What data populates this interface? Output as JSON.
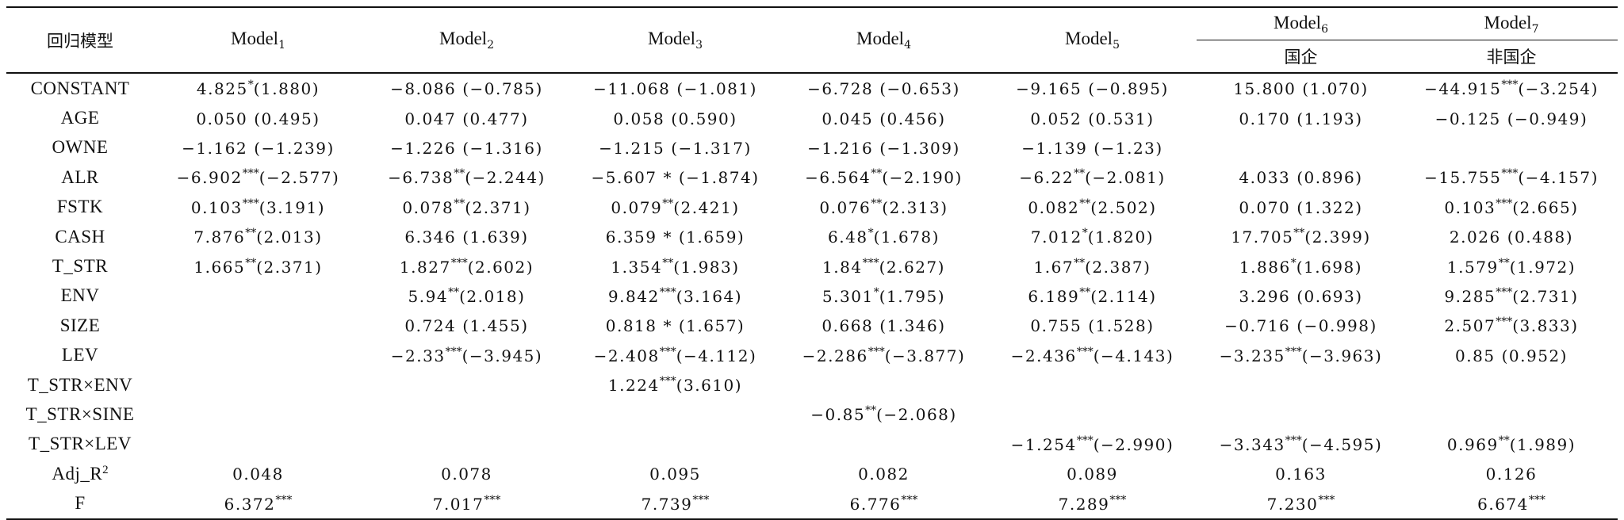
{
  "header": {
    "first_col": "回归模型",
    "models": [
      {
        "name": "Model",
        "sub": "1"
      },
      {
        "name": "Model",
        "sub": "2"
      },
      {
        "name": "Model",
        "sub": "3"
      },
      {
        "name": "Model",
        "sub": "4"
      },
      {
        "name": "Model",
        "sub": "5"
      },
      {
        "name": "Model",
        "sub": "6"
      },
      {
        "name": "Model",
        "sub": "7"
      }
    ],
    "model6_group": "国企",
    "model7_group": "非国企"
  },
  "rows": [
    {
      "label": "CONSTANT",
      "cells": [
        {
          "v": "4.825",
          "s": "*",
          "t": "(1.880)"
        },
        {
          "v": "−8.086",
          "s": "",
          "t": "(−0.785)"
        },
        {
          "v": "−11.068",
          "s": "",
          "t": "(−1.081)"
        },
        {
          "v": "−6.728",
          "s": "",
          "t": "(−0.653)"
        },
        {
          "v": "−9.165",
          "s": "",
          "t": "(−0.895)"
        },
        {
          "v": "15.800",
          "s": "",
          "t": "(1.070)"
        },
        {
          "v": "−44.915",
          "s": "***",
          "t": "(−3.254)"
        }
      ]
    },
    {
      "label": "AGE",
      "cells": [
        {
          "v": "0.050",
          "s": "",
          "t": "(0.495)"
        },
        {
          "v": "0.047",
          "s": "",
          "t": "(0.477)"
        },
        {
          "v": "0.058",
          "s": "",
          "t": "(0.590)"
        },
        {
          "v": "0.045",
          "s": "",
          "t": "(0.456)"
        },
        {
          "v": "0.052",
          "s": "",
          "t": "(0.531)"
        },
        {
          "v": "0.170",
          "s": "",
          "t": "(1.193)"
        },
        {
          "v": "−0.125",
          "s": "",
          "t": "(−0.949)"
        }
      ]
    },
    {
      "label": "OWNE",
      "cells": [
        {
          "v": "−1.162",
          "s": "",
          "t": "(−1.239)"
        },
        {
          "v": "−1.226",
          "s": "",
          "t": "(−1.316)"
        },
        {
          "v": "−1.215",
          "s": "",
          "t": "(−1.317)"
        },
        {
          "v": "−1.216",
          "s": "",
          "t": "(−1.309)"
        },
        {
          "v": "−1.139",
          "s": "",
          "t": "(−1.23)"
        },
        {
          "v": "",
          "s": "",
          "t": ""
        },
        {
          "v": "",
          "s": "",
          "t": ""
        }
      ]
    },
    {
      "label": "ALR",
      "cells": [
        {
          "v": "−6.902",
          "s": "***",
          "t": "(−2.577)"
        },
        {
          "v": "−6.738",
          "s": "**",
          "t": "(−2.244)"
        },
        {
          "v": "−5.607",
          "s": "",
          "t": "* (−1.874)"
        },
        {
          "v": "−6.564",
          "s": "**",
          "t": "(−2.190)"
        },
        {
          "v": "−6.22",
          "s": "**",
          "t": "(−2.081)"
        },
        {
          "v": "4.033",
          "s": "",
          "t": "(0.896)"
        },
        {
          "v": "−15.755",
          "s": "***",
          "t": "(−4.157)"
        }
      ]
    },
    {
      "label": "FSTK",
      "cells": [
        {
          "v": "0.103",
          "s": "***",
          "t": "(3.191)"
        },
        {
          "v": "0.078",
          "s": "**",
          "t": "(2.371)"
        },
        {
          "v": "0.079",
          "s": "**",
          "t": "(2.421)"
        },
        {
          "v": "0.076",
          "s": "**",
          "t": "(2.313)"
        },
        {
          "v": "0.082",
          "s": "**",
          "t": "(2.502)"
        },
        {
          "v": "0.070",
          "s": "",
          "t": "(1.322)"
        },
        {
          "v": "0.103",
          "s": "***",
          "t": "(2.665)"
        }
      ]
    },
    {
      "label": "CASH",
      "cells": [
        {
          "v": "7.876",
          "s": "**",
          "t": "(2.013)"
        },
        {
          "v": "6.346",
          "s": "",
          "t": "(1.639)"
        },
        {
          "v": "6.359",
          "s": "",
          "t": "* (1.659)"
        },
        {
          "v": "6.48",
          "s": "*",
          "t": "(1.678)"
        },
        {
          "v": "7.012",
          "s": "*",
          "t": "(1.820)"
        },
        {
          "v": "17.705",
          "s": "**",
          "t": "(2.399)"
        },
        {
          "v": "2.026",
          "s": "",
          "t": "(0.488)"
        }
      ]
    },
    {
      "label": "T_STR",
      "cells": [
        {
          "v": "1.665",
          "s": "**",
          "t": "(2.371)"
        },
        {
          "v": "1.827",
          "s": "***",
          "t": "(2.602)"
        },
        {
          "v": "1.354",
          "s": "**",
          "t": "(1.983)"
        },
        {
          "v": "1.84",
          "s": "***",
          "t": "(2.627)"
        },
        {
          "v": "1.67",
          "s": "**",
          "t": "(2.387)"
        },
        {
          "v": "1.886",
          "s": "*",
          "t": "(1.698)"
        },
        {
          "v": "1.579",
          "s": "**",
          "t": "(1.972)"
        }
      ]
    },
    {
      "label": "ENV",
      "cells": [
        {
          "v": "",
          "s": "",
          "t": ""
        },
        {
          "v": "5.94",
          "s": "**",
          "t": "(2.018)"
        },
        {
          "v": "9.842",
          "s": "***",
          "t": "(3.164)"
        },
        {
          "v": "5.301",
          "s": "*",
          "t": "(1.795)"
        },
        {
          "v": "6.189",
          "s": "**",
          "t": "(2.114)"
        },
        {
          "v": "3.296",
          "s": "",
          "t": "(0.693)"
        },
        {
          "v": "9.285",
          "s": "***",
          "t": "(2.731)"
        }
      ]
    },
    {
      "label": "SIZE",
      "cells": [
        {
          "v": "",
          "s": "",
          "t": ""
        },
        {
          "v": "0.724",
          "s": "",
          "t": "(1.455)"
        },
        {
          "v": "0.818",
          "s": "",
          "t": "* (1.657)"
        },
        {
          "v": "0.668",
          "s": "",
          "t": "(1.346)"
        },
        {
          "v": "0.755",
          "s": "",
          "t": "(1.528)"
        },
        {
          "v": "−0.716",
          "s": "",
          "t": "(−0.998)"
        },
        {
          "v": "2.507",
          "s": "***",
          "t": "(3.833)"
        }
      ]
    },
    {
      "label": "LEV",
      "cells": [
        {
          "v": "",
          "s": "",
          "t": ""
        },
        {
          "v": "−2.33",
          "s": "***",
          "t": "(−3.945)"
        },
        {
          "v": "−2.408",
          "s": "***",
          "t": "(−4.112)"
        },
        {
          "v": "−2.286",
          "s": "***",
          "t": "(−3.877)"
        },
        {
          "v": "−2.436",
          "s": "***",
          "t": "(−4.143)"
        },
        {
          "v": "−3.235",
          "s": "***",
          "t": "(−3.963)"
        },
        {
          "v": "0.85",
          "s": "",
          "t": "(0.952)"
        }
      ]
    },
    {
      "label": "T_STR×ENV",
      "cells": [
        {
          "v": "",
          "s": "",
          "t": ""
        },
        {
          "v": "",
          "s": "",
          "t": ""
        },
        {
          "v": "1.224",
          "s": "***",
          "t": "(3.610)"
        },
        {
          "v": "",
          "s": "",
          "t": ""
        },
        {
          "v": "",
          "s": "",
          "t": ""
        },
        {
          "v": "",
          "s": "",
          "t": ""
        },
        {
          "v": "",
          "s": "",
          "t": ""
        }
      ]
    },
    {
      "label": "T_STR×SINE",
      "cells": [
        {
          "v": "",
          "s": "",
          "t": ""
        },
        {
          "v": "",
          "s": "",
          "t": ""
        },
        {
          "v": "",
          "s": "",
          "t": ""
        },
        {
          "v": "−0.85",
          "s": "**",
          "t": "(−2.068)"
        },
        {
          "v": "",
          "s": "",
          "t": ""
        },
        {
          "v": "",
          "s": "",
          "t": ""
        },
        {
          "v": "",
          "s": "",
          "t": ""
        }
      ]
    },
    {
      "label": "T_STR×LEV",
      "cells": [
        {
          "v": "",
          "s": "",
          "t": ""
        },
        {
          "v": "",
          "s": "",
          "t": ""
        },
        {
          "v": "",
          "s": "",
          "t": ""
        },
        {
          "v": "",
          "s": "",
          "t": ""
        },
        {
          "v": "−1.254",
          "s": "***",
          "t": "(−2.990)"
        },
        {
          "v": "−3.343",
          "s": "***",
          "t": "(−4.595)"
        },
        {
          "v": "0.969",
          "s": "**",
          "t": "(1.989)"
        }
      ]
    },
    {
      "label": "Adj_R",
      "label_sup": "2",
      "cells": [
        {
          "v": "0.048",
          "s": "",
          "t": ""
        },
        {
          "v": "0.078",
          "s": "",
          "t": ""
        },
        {
          "v": "0.095",
          "s": "",
          "t": ""
        },
        {
          "v": "0.082",
          "s": "",
          "t": ""
        },
        {
          "v": "0.089",
          "s": "",
          "t": ""
        },
        {
          "v": "0.163",
          "s": "",
          "t": ""
        },
        {
          "v": "0.126",
          "s": "",
          "t": ""
        }
      ]
    },
    {
      "label": "F",
      "cells": [
        {
          "v": "6.372",
          "s": "***",
          "t": ""
        },
        {
          "v": "7.017",
          "s": "***",
          "t": ""
        },
        {
          "v": "7.739",
          "s": "***",
          "t": ""
        },
        {
          "v": "6.776",
          "s": "***",
          "t": ""
        },
        {
          "v": "7.289",
          "s": "***",
          "t": ""
        },
        {
          "v": "7.230",
          "s": "***",
          "t": ""
        },
        {
          "v": "6.674",
          "s": "***",
          "t": ""
        }
      ]
    }
  ]
}
